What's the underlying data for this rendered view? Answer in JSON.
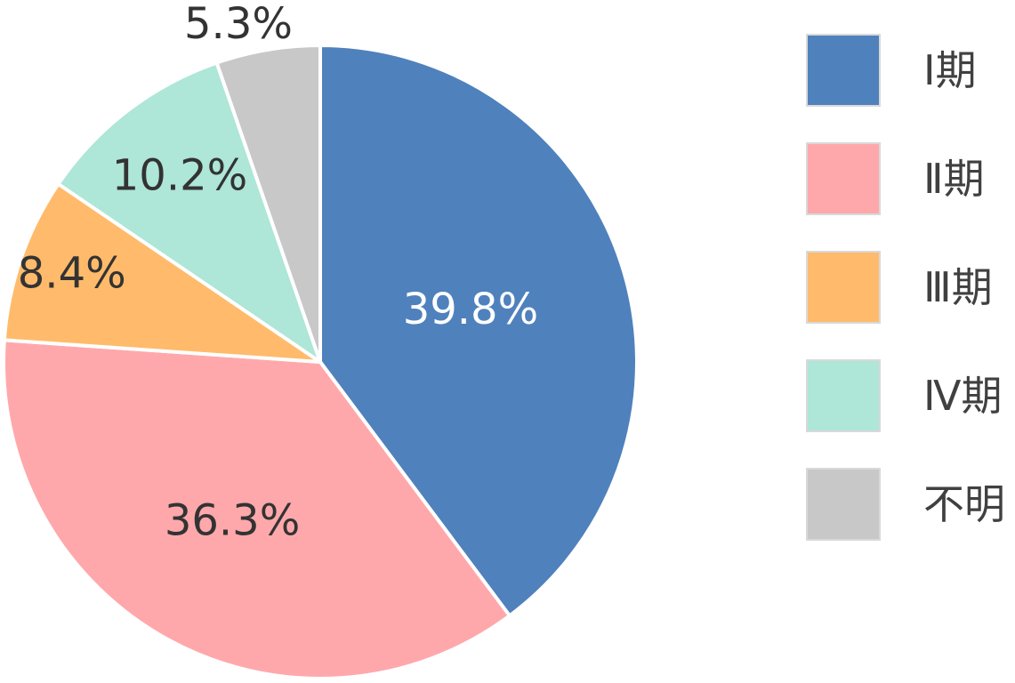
{
  "chart_data": {
    "type": "pie",
    "slices": [
      {
        "label": "Ⅰ期",
        "value": 39.8,
        "value_text": "39.8%",
        "color": "#4f81bd",
        "label_color": "#ffffff"
      },
      {
        "label": "Ⅱ期",
        "value": 36.3,
        "value_text": "36.3%",
        "color": "#ffa8ab",
        "label_color": "#333333"
      },
      {
        "label": "Ⅲ期",
        "value": 8.4,
        "value_text": "8.4%",
        "color": "#ffbb6b",
        "label_color": "#333333"
      },
      {
        "label": "Ⅳ期",
        "value": 10.2,
        "value_text": "10.2%",
        "color": "#aee6d8",
        "label_color": "#333333"
      },
      {
        "label": "不明",
        "value": 5.3,
        "value_text": "5.3%",
        "color": "#c8c8c8",
        "label_color": "#333333"
      }
    ],
    "start_angle": "12 o'clock",
    "direction": "clockwise",
    "legend_position": "right"
  }
}
